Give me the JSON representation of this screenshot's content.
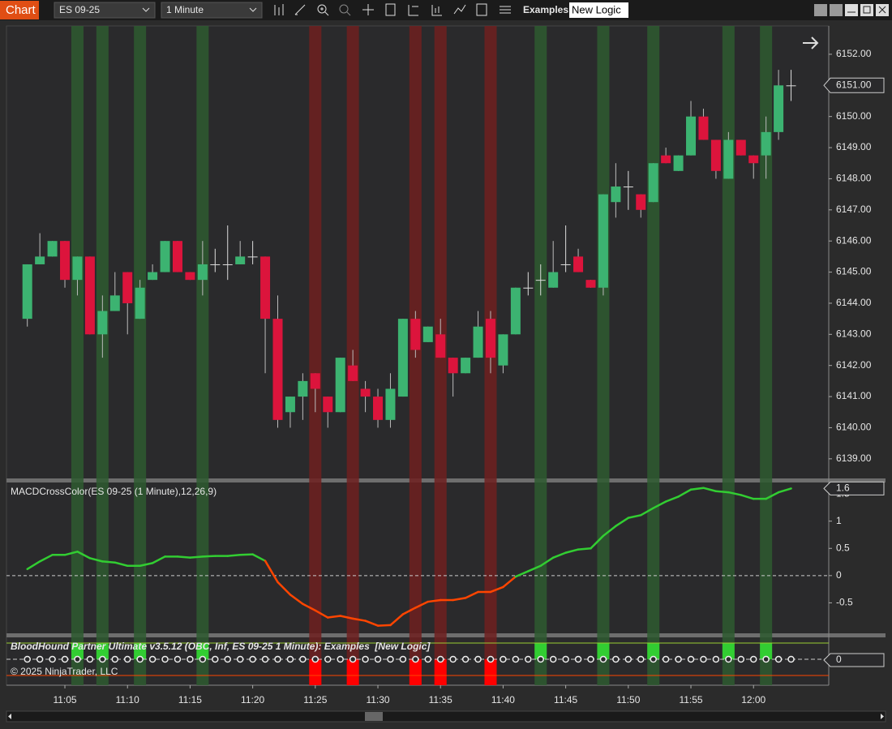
{
  "toolbar": {
    "title": "Chart",
    "instrument": "ES 09-25",
    "interval": "1 Minute",
    "workspace_label": "Examples",
    "workspace": "New Logic"
  },
  "chart_data": [
    {
      "type": "candlestick",
      "x": [
        "11:02",
        "11:03",
        "11:04",
        "11:05",
        "11:06",
        "11:07",
        "11:08",
        "11:09",
        "11:10",
        "11:11",
        "11:12",
        "11:13",
        "11:14",
        "11:15",
        "11:16",
        "11:17",
        "11:18",
        "11:19",
        "11:20",
        "11:21",
        "11:22",
        "11:23",
        "11:24",
        "11:25",
        "11:26",
        "11:27",
        "11:28",
        "11:29",
        "11:30",
        "11:31",
        "11:32",
        "11:33",
        "11:34",
        "11:35",
        "11:36",
        "11:37",
        "11:38",
        "11:39",
        "11:40",
        "11:41",
        "11:42",
        "11:43",
        "11:44",
        "11:45",
        "11:46",
        "11:47",
        "11:48",
        "11:49",
        "11:50",
        "11:51",
        "11:52",
        "11:53",
        "11:54",
        "11:55",
        "11:56",
        "11:57",
        "11:58",
        "11:59",
        "12:00",
        "12:01",
        "12:02",
        "12:03"
      ],
      "open": [
        6143.5,
        6145.25,
        6145.5,
        6146,
        6144.75,
        6145.5,
        6143,
        6143.75,
        6145,
        6143.5,
        6144.75,
        6145,
        6146,
        6145,
        6144.75,
        6145.25,
        6145.25,
        6145.25,
        6145.5,
        6145.5,
        6143.5,
        6140.5,
        6141,
        6141.75,
        6141,
        6140.5,
        6142,
        6141.25,
        6141,
        6140.25,
        6141,
        6143.5,
        6142.75,
        6143,
        6142.25,
        6141.75,
        6142.25,
        6143.5,
        6142,
        6143,
        6144.5,
        6144.75,
        6144.5,
        6145.25,
        6145.5,
        6144.75,
        6144.5,
        6147.25,
        6147.75,
        6147.5,
        6147.25,
        6148.75,
        6148.25,
        6148.75,
        6150,
        6149.25,
        6148,
        6149.25,
        6148.75,
        6148.75,
        6149.5,
        6151
      ],
      "high": [
        6145.25,
        6146.25,
        6146,
        6146,
        6145.5,
        6145.5,
        6144.25,
        6145,
        6145,
        6144.75,
        6145.25,
        6146,
        6146,
        6145,
        6146,
        6145.75,
        6146.5,
        6146,
        6146,
        6145.5,
        6144.25,
        6141,
        6141.75,
        6141.75,
        6141,
        6142.25,
        6142.5,
        6141.5,
        6141.25,
        6141.75,
        6143.5,
        6143.75,
        6143.25,
        6143.5,
        6142.25,
        6142.25,
        6143.75,
        6143.75,
        6143,
        6144.5,
        6145,
        6145.25,
        6146,
        6146.5,
        6145.75,
        6144.75,
        6147.5,
        6148.5,
        6148.25,
        6147.5,
        6148.5,
        6149,
        6148.75,
        6150.5,
        6150.25,
        6149.25,
        6149.5,
        6149.25,
        6148.75,
        6150,
        6151.5,
        6151.5
      ],
      "low": [
        6143.25,
        6145.25,
        6145.5,
        6144.5,
        6144.25,
        6143,
        6142.25,
        6143.75,
        6143,
        6143.5,
        6144.75,
        6145,
        6145,
        6144.75,
        6144.25,
        6145,
        6144.75,
        6145.25,
        6145.25,
        6141.75,
        6140,
        6140,
        6140.25,
        6140.5,
        6140,
        6140.5,
        6141.5,
        6140.5,
        6140,
        6140,
        6141,
        6142.25,
        6142.75,
        6142.25,
        6141,
        6141.75,
        6142.25,
        6141.75,
        6141.75,
        6143,
        6144.25,
        6144.25,
        6144.5,
        6145,
        6145,
        6144.5,
        6144.25,
        6146.75,
        6147,
        6146.75,
        6147.25,
        6148.5,
        6148.25,
        6148.75,
        6149.25,
        6148,
        6148,
        6148.75,
        6148,
        6148,
        6149.25,
        6150.5
      ],
      "close": [
        6145.25,
        6145.5,
        6146,
        6144.75,
        6145.5,
        6143,
        6143.75,
        6144.25,
        6144,
        6144.5,
        6145,
        6146,
        6145,
        6144.75,
        6145.25,
        6145.25,
        6145.25,
        6145.5,
        6145.5,
        6143.5,
        6140.25,
        6141,
        6141.5,
        6141.25,
        6140.5,
        6142.25,
        6141.5,
        6141,
        6140.25,
        6141.25,
        6143.5,
        6142.5,
        6143.25,
        6142.25,
        6141.75,
        6142.25,
        6143.25,
        6142.25,
        6143,
        6144.5,
        6144.5,
        6144.75,
        6145,
        6145.25,
        6145,
        6144.5,
        6147.5,
        6147.75,
        6147.75,
        6147,
        6148.5,
        6148.5,
        6148.75,
        6150,
        6149.25,
        6148.25,
        6149.25,
        6148.75,
        6148.5,
        6149.5,
        6151,
        6151
      ],
      "up_color": "#3cb371",
      "down_color": "#dc143c",
      "doji_color": "#dcdcdc",
      "ylim": [
        6138.37,
        6152.91
      ],
      "yticks": [
        {
          "value": 6139,
          "label": "6139.00"
        },
        {
          "value": 6140,
          "label": "6140.00"
        },
        {
          "value": 6141,
          "label": "6141.00"
        },
        {
          "value": 6142,
          "label": "6142.00"
        },
        {
          "value": 6143,
          "label": "6143.00"
        },
        {
          "value": 6144,
          "label": "6144.00"
        },
        {
          "value": 6145,
          "label": "6145.00"
        },
        {
          "value": 6146,
          "label": "6146.00"
        },
        {
          "value": 6147,
          "label": "6147.00"
        },
        {
          "value": 6148,
          "label": "6148.00"
        },
        {
          "value": 6149,
          "label": "6149.00"
        },
        {
          "value": 6150,
          "label": "6150.00"
        },
        {
          "value": 6151,
          "label": "6151.00"
        },
        {
          "value": 6152,
          "label": "6152.00"
        }
      ],
      "xticks": [
        "11:05",
        "11:10",
        "11:15",
        "11:20",
        "11:25",
        "11:30",
        "11:35",
        "11:40",
        "11:45",
        "11:50",
        "11:55",
        "12:00"
      ],
      "last_price": {
        "value": 6151,
        "label": "6151.00"
      },
      "long_signals": [
        "11:06",
        "11:08",
        "11:11",
        "11:16",
        "11:43",
        "11:48",
        "11:52",
        "11:58",
        "12:01"
      ],
      "short_signals": [
        "11:25",
        "11:28",
        "11:33",
        "11:35",
        "11:39"
      ],
      "long_band_color": "#2e5a30",
      "short_band_color": "#6e2020"
    },
    {
      "type": "line",
      "title": "MACDCrossColor(ES 09-25 (1 Minute),12,26,9)",
      "values": [
        0.12,
        0.26,
        0.38,
        0.38,
        0.44,
        0.32,
        0.26,
        0.24,
        0.18,
        0.18,
        0.23,
        0.35,
        0.35,
        0.33,
        0.35,
        0.36,
        0.36,
        0.38,
        0.39,
        0.27,
        -0.12,
        -0.35,
        -0.52,
        -0.64,
        -0.77,
        -0.74,
        -0.79,
        -0.83,
        -0.92,
        -0.91,
        -0.71,
        -0.59,
        -0.48,
        -0.45,
        -0.45,
        -0.41,
        -0.3,
        -0.3,
        -0.21,
        -0.02,
        0.08,
        0.18,
        0.33,
        0.42,
        0.48,
        0.5,
        0.73,
        0.91,
        1.06,
        1.11,
        1.24,
        1.36,
        1.45,
        1.58,
        1.61,
        1.55,
        1.53,
        1.48,
        1.41,
        1.41,
        1.53,
        1.6
      ],
      "positive_color": "#32cd32",
      "negative_color": "#ff4500",
      "ylim": [
        -1.06,
        1.71
      ],
      "yticks": [
        -0.5,
        0,
        0.5,
        1,
        1.5
      ],
      "last_value": 1.6
    },
    {
      "type": "signal",
      "title": "BloodHound Partner Ultimate v3.5.12 (OBC, Inf, ES 09-25 1 Minute): Examples  [New Logic]",
      "copyright": "© 2025 NinjaTrader, LLC",
      "yticks": [
        0
      ],
      "long_color": "#32cd32",
      "short_color": "#ff0000"
    }
  ]
}
